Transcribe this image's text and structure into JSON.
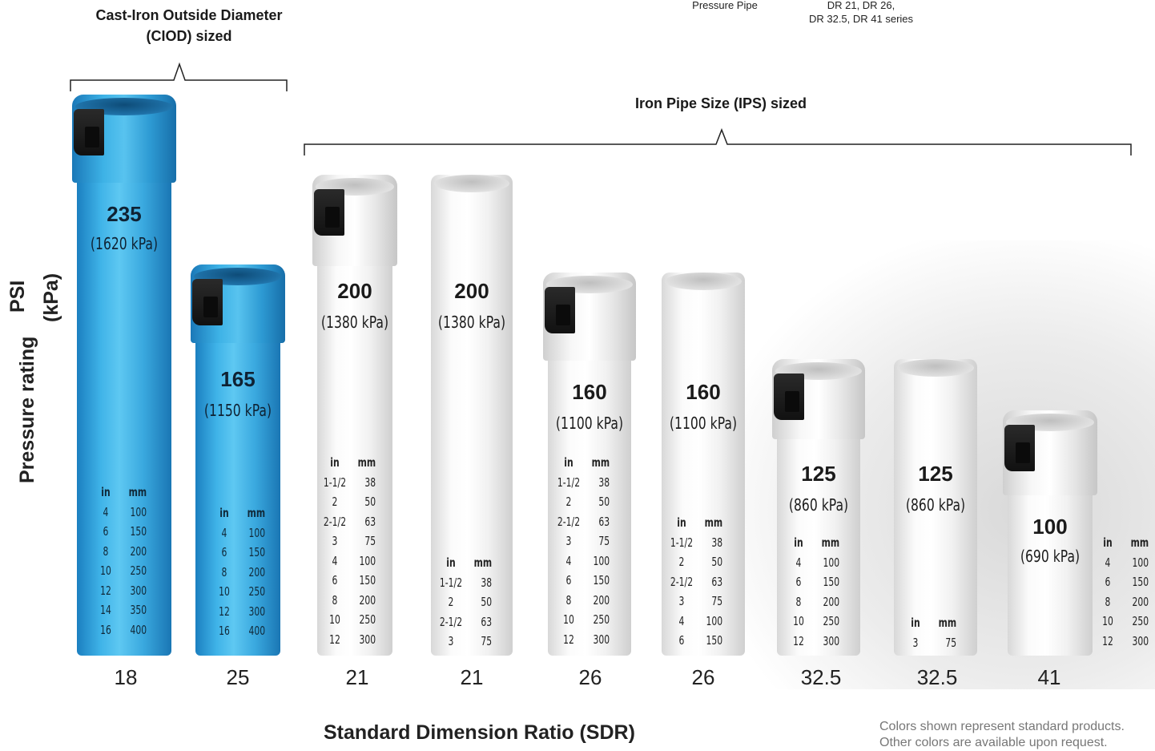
{
  "top_left_header": "Cast-Iron Outside Diameter (CIOD) sized",
  "top_left_header_lines": [
    "Cast-Iron Outside Diameter",
    "(CIOD) sized"
  ],
  "top_right_label_1": "Pressure Pipe",
  "top_right_label_2_lines": [
    "DR 21, DR 26,",
    "DR 32.5, DR 41 series"
  ],
  "ips_header": "Iron Pipe Size (IPS) sized",
  "y_axis_title": "Pressure rating",
  "y_axis_unit_lines": [
    "PSI",
    "(kPa)"
  ],
  "x_axis_title": "Standard Dimension Ratio (SDR)",
  "footnote_lines": [
    "Colors shown represent standard products.",
    "Other colors are available upon request."
  ],
  "size_headers": {
    "in": "in",
    "mm": "mm"
  },
  "colors": {
    "blue_pipe": "#3fb3e8",
    "white_pipe": "#f7f7f7",
    "gasket": "#1a1a1a"
  },
  "pipes": [
    {
      "sdr": "18",
      "color": "blue",
      "psi": "235",
      "kpa": "(1620 kPa)",
      "gasket": true,
      "sizes": [
        [
          "4",
          "100"
        ],
        [
          "6",
          "150"
        ],
        [
          "8",
          "200"
        ],
        [
          "10",
          "250"
        ],
        [
          "12",
          "300"
        ],
        [
          "14",
          "350"
        ],
        [
          "16",
          "400"
        ]
      ]
    },
    {
      "sdr": "25",
      "color": "blue",
      "psi": "165",
      "kpa": "(1150 kPa)",
      "gasket": true,
      "sizes": [
        [
          "4",
          "100"
        ],
        [
          "6",
          "150"
        ],
        [
          "8",
          "200"
        ],
        [
          "10",
          "250"
        ],
        [
          "12",
          "300"
        ],
        [
          "16",
          "400"
        ]
      ]
    },
    {
      "sdr": "21",
      "color": "white",
      "psi": "200",
      "kpa": "(1380 kPa)",
      "gasket": true,
      "sizes": [
        [
          "1-1/2",
          "38"
        ],
        [
          "2",
          "50"
        ],
        [
          "2-1/2",
          "63"
        ],
        [
          "3",
          "75"
        ],
        [
          "4",
          "100"
        ],
        [
          "6",
          "150"
        ],
        [
          "8",
          "200"
        ],
        [
          "10",
          "250"
        ],
        [
          "12",
          "300"
        ]
      ]
    },
    {
      "sdr": "21",
      "color": "white",
      "psi": "200",
      "kpa": "(1380 kPa)",
      "gasket": false,
      "sizes": [
        [
          "1-1/2",
          "38"
        ],
        [
          "2",
          "50"
        ],
        [
          "2-1/2",
          "63"
        ],
        [
          "3",
          "75"
        ]
      ]
    },
    {
      "sdr": "26",
      "color": "white",
      "psi": "160",
      "kpa": "(1100 kPa)",
      "gasket": true,
      "sizes": [
        [
          "1-1/2",
          "38"
        ],
        [
          "2",
          "50"
        ],
        [
          "2-1/2",
          "63"
        ],
        [
          "3",
          "75"
        ],
        [
          "4",
          "100"
        ],
        [
          "6",
          "150"
        ],
        [
          "8",
          "200"
        ],
        [
          "10",
          "250"
        ],
        [
          "12",
          "300"
        ]
      ]
    },
    {
      "sdr": "26",
      "color": "white",
      "psi": "160",
      "kpa": "(1100 kPa)",
      "gasket": false,
      "sizes": [
        [
          "1-1/2",
          "38"
        ],
        [
          "2",
          "50"
        ],
        [
          "2-1/2",
          "63"
        ],
        [
          "3",
          "75"
        ],
        [
          "4",
          "100"
        ],
        [
          "6",
          "150"
        ]
      ]
    },
    {
      "sdr": "32.5",
      "color": "white",
      "psi": "125",
      "kpa": "(860 kPa)",
      "gasket": true,
      "sizes": [
        [
          "4",
          "100"
        ],
        [
          "6",
          "150"
        ],
        [
          "8",
          "200"
        ],
        [
          "10",
          "250"
        ],
        [
          "12",
          "300"
        ]
      ]
    },
    {
      "sdr": "32.5",
      "color": "white",
      "psi": "125",
      "kpa": "(860 kPa)",
      "gasket": false,
      "sizes": [
        [
          "3",
          "75"
        ]
      ]
    },
    {
      "sdr": "41",
      "color": "white",
      "psi": "100",
      "kpa": "(690 kPa)",
      "gasket": true,
      "sizes": [
        [
          "4",
          "100"
        ],
        [
          "6",
          "150"
        ],
        [
          "8",
          "200"
        ],
        [
          "10",
          "250"
        ],
        [
          "12",
          "300"
        ]
      ]
    }
  ]
}
